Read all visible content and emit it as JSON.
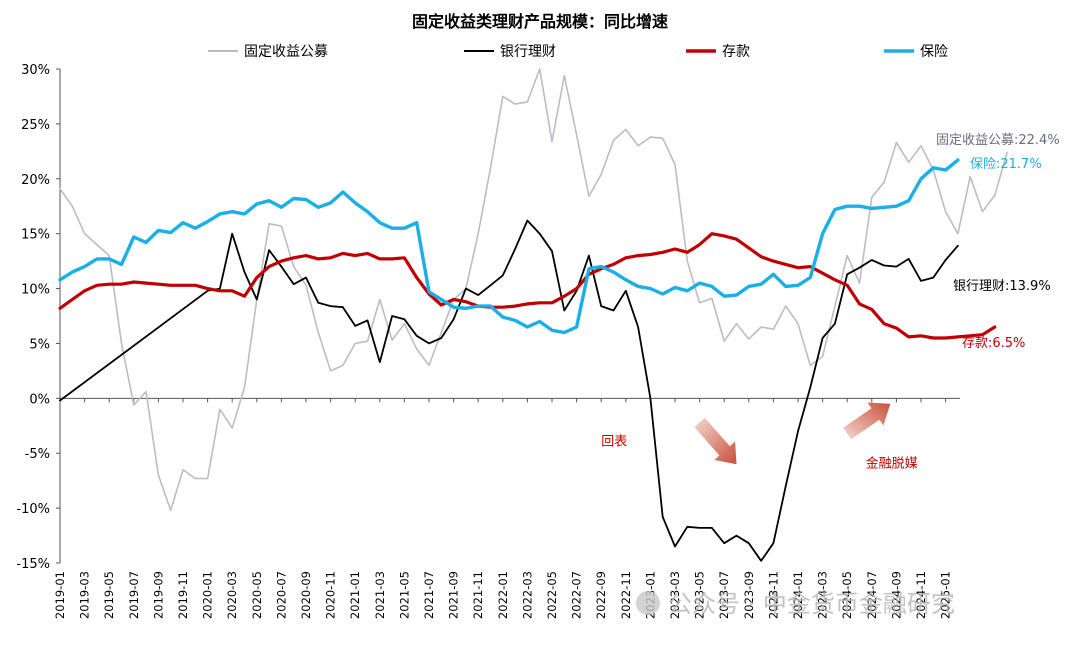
{
  "chart_data": {
    "type": "line",
    "title": "固定收益类理财产品规模：同比增速",
    "xlabel": "",
    "ylabel": "",
    "ylim": [
      -15,
      30
    ],
    "yticks": [
      30,
      25,
      20,
      15,
      10,
      5,
      0,
      -5,
      -10,
      -15
    ],
    "ytick_labels": [
      "30%",
      "25%",
      "20%",
      "15%",
      "10%",
      "5%",
      "0%",
      "-5%",
      "-10%",
      "-15%"
    ],
    "xlim": [
      "2019-01",
      "2025-02"
    ],
    "x_tick_labels": [
      "2019-01",
      "2019-03",
      "2019-05",
      "2019-07",
      "2019-09",
      "2019-11",
      "2020-01",
      "2020-03",
      "2020-05",
      "2020-07",
      "2020-09",
      "2020-11",
      "2021-01",
      "2021-03",
      "2021-05",
      "2021-07",
      "2021-09",
      "2021-11",
      "2022-01",
      "2022-03",
      "2022-05",
      "2022-07",
      "2022-09",
      "2022-11",
      "2023-01",
      "2023-03",
      "2023-05",
      "2023-07",
      "2023-09",
      "2023-11",
      "2024-01",
      "2024-03",
      "2024-05",
      "2024-07",
      "2024-09",
      "2024-11",
      "2025-01"
    ],
    "grid": false,
    "legend_position": "top",
    "series": [
      {
        "name": "固定收益公募",
        "color": "#bcbcc9",
        "end_label": "固定收益公募:22.4%",
        "end_label_color": "#6a6a80",
        "points": [
          [
            0,
            19.1
          ],
          [
            1,
            17.5
          ],
          [
            2,
            15
          ],
          [
            3,
            14
          ],
          [
            4,
            13
          ],
          [
            5,
            5
          ],
          [
            6,
            -0.6
          ],
          [
            7,
            0.6
          ],
          [
            8,
            -7
          ],
          [
            9,
            -10.2
          ],
          [
            10,
            -6.5
          ],
          [
            11,
            -7.3
          ],
          [
            12,
            -7.3
          ],
          [
            13,
            -1
          ],
          [
            14,
            -2.7
          ],
          [
            15,
            1
          ],
          [
            16,
            9
          ],
          [
            17,
            15.9
          ],
          [
            18,
            15.7
          ],
          [
            19,
            12
          ],
          [
            20,
            10.3
          ],
          [
            21,
            6
          ],
          [
            22,
            2.5
          ],
          [
            23,
            3
          ],
          [
            24,
            5
          ],
          [
            25,
            5.2
          ],
          [
            26,
            9
          ],
          [
            27,
            5.3
          ],
          [
            28,
            6.8
          ],
          [
            29,
            4.5
          ],
          [
            30,
            3
          ],
          [
            31,
            6
          ],
          [
            32,
            9
          ],
          [
            33,
            10
          ],
          [
            34,
            15
          ],
          [
            35,
            21
          ],
          [
            36,
            27.5
          ],
          [
            37,
            26.8
          ],
          [
            38,
            27
          ],
          [
            39,
            30
          ],
          [
            40,
            23.4
          ],
          [
            41,
            29.4
          ],
          [
            42,
            24
          ],
          [
            43,
            18.4
          ],
          [
            44,
            20.4
          ],
          [
            45,
            23.5
          ],
          [
            46,
            24.5
          ],
          [
            47,
            23
          ],
          [
            48,
            23.8
          ],
          [
            49,
            23.7
          ],
          [
            50,
            21.3
          ],
          [
            51,
            12.5
          ],
          [
            52,
            8.7
          ],
          [
            53,
            9.1
          ],
          [
            54,
            5.2
          ],
          [
            55,
            6.8
          ],
          [
            56,
            5.4
          ],
          [
            57,
            6.5
          ],
          [
            58,
            6.3
          ],
          [
            59,
            8.4
          ],
          [
            60,
            6.8
          ],
          [
            61,
            3
          ],
          [
            62,
            3.8
          ],
          [
            63,
            8.4
          ],
          [
            64,
            13
          ],
          [
            65,
            10.5
          ],
          [
            66,
            18.3
          ],
          [
            67,
            19.7
          ],
          [
            68,
            23.3
          ],
          [
            69,
            21.5
          ],
          [
            70,
            23
          ],
          [
            71,
            20.8
          ],
          [
            72,
            17
          ],
          [
            73,
            15
          ],
          [
            74,
            20.2
          ],
          [
            75,
            17
          ],
          [
            76,
            18.5
          ],
          [
            77,
            22.4
          ]
        ]
      },
      {
        "name": "银行理财",
        "color": "#000000",
        "end_label": "银行理财:13.9%",
        "end_label_color": "#000000",
        "points": [
          [
            0,
            -0.2
          ],
          [
            12,
            9.8
          ],
          [
            13,
            10
          ],
          [
            14,
            15
          ],
          [
            15,
            11.5
          ],
          [
            16,
            9
          ],
          [
            17,
            13.5
          ],
          [
            18,
            12
          ],
          [
            19,
            10.4
          ],
          [
            20,
            11
          ],
          [
            21,
            8.7
          ],
          [
            22,
            8.4
          ],
          [
            23,
            8.3
          ],
          [
            24,
            6.6
          ],
          [
            25,
            7.1
          ],
          [
            26,
            3.3
          ],
          [
            27,
            7.5
          ],
          [
            28,
            7.2
          ],
          [
            29,
            5.7
          ],
          [
            30,
            5
          ],
          [
            31,
            5.5
          ],
          [
            32,
            7.2
          ],
          [
            33,
            10
          ],
          [
            34,
            9.4
          ],
          [
            35,
            10.3
          ],
          [
            36,
            11.2
          ],
          [
            37,
            13.6
          ],
          [
            38,
            16.2
          ],
          [
            39,
            15
          ],
          [
            40,
            13.4
          ],
          [
            41,
            8
          ],
          [
            42,
            9.8
          ],
          [
            43,
            13
          ],
          [
            44,
            8.4
          ],
          [
            45,
            8
          ],
          [
            46,
            9.8
          ],
          [
            47,
            6.5
          ],
          [
            48,
            0
          ],
          [
            49,
            -10.8
          ],
          [
            50,
            -13.5
          ],
          [
            51,
            -11.7
          ],
          [
            52,
            -11.8
          ],
          [
            53,
            -11.8
          ],
          [
            54,
            -13.2
          ],
          [
            55,
            -12.5
          ],
          [
            56,
            -13.2
          ],
          [
            57,
            -14.8
          ],
          [
            58,
            -13.2
          ],
          [
            59,
            -8
          ],
          [
            60,
            -3
          ],
          [
            61,
            1
          ],
          [
            62,
            5.5
          ],
          [
            63,
            6.8
          ],
          [
            64,
            11.3
          ],
          [
            65,
            11.9
          ],
          [
            66,
            12.6
          ],
          [
            67,
            12.1
          ],
          [
            68,
            12
          ],
          [
            69,
            12.7
          ],
          [
            70,
            10.7
          ],
          [
            71,
            11
          ],
          [
            72,
            12.6
          ],
          [
            73,
            13.9
          ]
        ]
      },
      {
        "name": "存款",
        "color": "#c00000",
        "end_label": "存款:6.5%",
        "end_label_color": "#c00000",
        "points": [
          [
            0,
            8.2
          ],
          [
            1,
            9
          ],
          [
            2,
            9.8
          ],
          [
            3,
            10.3
          ],
          [
            4,
            10.4
          ],
          [
            5,
            10.4
          ],
          [
            6,
            10.6
          ],
          [
            7,
            10.5
          ],
          [
            8,
            10.4
          ],
          [
            9,
            10.3
          ],
          [
            10,
            10.3
          ],
          [
            11,
            10.3
          ],
          [
            12,
            10
          ],
          [
            13,
            9.8
          ],
          [
            14,
            9.8
          ],
          [
            15,
            9.3
          ],
          [
            16,
            11
          ],
          [
            17,
            12
          ],
          [
            18,
            12.5
          ],
          [
            19,
            12.8
          ],
          [
            20,
            13
          ],
          [
            21,
            12.7
          ],
          [
            22,
            12.8
          ],
          [
            23,
            13.2
          ],
          [
            24,
            13
          ],
          [
            25,
            13.2
          ],
          [
            26,
            12.7
          ],
          [
            27,
            12.7
          ],
          [
            28,
            12.8
          ],
          [
            29,
            11
          ],
          [
            30,
            9.5
          ],
          [
            31,
            8.5
          ],
          [
            32,
            9
          ],
          [
            33,
            8.8
          ],
          [
            34,
            8.4
          ],
          [
            35,
            8.3
          ],
          [
            36,
            8.3
          ],
          [
            37,
            8.4
          ],
          [
            38,
            8.6
          ],
          [
            39,
            8.7
          ],
          [
            40,
            8.7
          ],
          [
            41,
            9.3
          ],
          [
            42,
            10
          ],
          [
            43,
            11.3
          ],
          [
            44,
            11.8
          ],
          [
            45,
            12.2
          ],
          [
            46,
            12.8
          ],
          [
            47,
            13
          ],
          [
            48,
            13.1
          ],
          [
            49,
            13.3
          ],
          [
            50,
            13.6
          ],
          [
            51,
            13.3
          ],
          [
            52,
            14
          ],
          [
            53,
            15
          ],
          [
            54,
            14.8
          ],
          [
            55,
            14.5
          ],
          [
            56,
            13.7
          ],
          [
            57,
            12.9
          ],
          [
            58,
            12.5
          ],
          [
            59,
            12.2
          ],
          [
            60,
            11.9
          ],
          [
            61,
            12
          ],
          [
            62,
            11.4
          ],
          [
            63,
            10.8
          ],
          [
            64,
            10.3
          ],
          [
            65,
            8.6
          ],
          [
            66,
            8.1
          ],
          [
            67,
            6.8
          ],
          [
            68,
            6.4
          ],
          [
            69,
            5.6
          ],
          [
            70,
            5.7
          ],
          [
            71,
            5.5
          ],
          [
            72,
            5.5
          ],
          [
            73,
            5.6
          ],
          [
            74,
            5.7
          ],
          [
            75,
            5.8
          ],
          [
            76,
            6.5
          ]
        ]
      },
      {
        "name": "保险",
        "color": "#1aafe6",
        "end_label": "保险:21.7%",
        "end_label_color": "#1aafe6",
        "points": [
          [
            0,
            10.8
          ],
          [
            1,
            11.5
          ],
          [
            2,
            12
          ],
          [
            3,
            12.7
          ],
          [
            4,
            12.7
          ],
          [
            5,
            12.2
          ],
          [
            6,
            14.7
          ],
          [
            7,
            14.2
          ],
          [
            8,
            15.3
          ],
          [
            9,
            15.1
          ],
          [
            10,
            16
          ],
          [
            11,
            15.5
          ],
          [
            12,
            16.1
          ],
          [
            13,
            16.8
          ],
          [
            14,
            17
          ],
          [
            15,
            16.8
          ],
          [
            16,
            17.7
          ],
          [
            17,
            18
          ],
          [
            18,
            17.4
          ],
          [
            19,
            18.2
          ],
          [
            20,
            18.1
          ],
          [
            21,
            17.4
          ],
          [
            22,
            17.8
          ],
          [
            23,
            18.8
          ],
          [
            24,
            17.8
          ],
          [
            25,
            17
          ],
          [
            26,
            16
          ],
          [
            27,
            15.5
          ],
          [
            28,
            15.5
          ],
          [
            29,
            16
          ],
          [
            30,
            9.7
          ],
          [
            31,
            9
          ],
          [
            32,
            8.3
          ],
          [
            33,
            8.2
          ],
          [
            34,
            8.4
          ],
          [
            35,
            8.4
          ],
          [
            36,
            7.4
          ],
          [
            37,
            7.1
          ],
          [
            38,
            6.5
          ],
          [
            39,
            7
          ],
          [
            40,
            6.2
          ],
          [
            41,
            6
          ],
          [
            42,
            6.5
          ],
          [
            43,
            11.8
          ],
          [
            44,
            12
          ],
          [
            45,
            11.5
          ],
          [
            46,
            10.8
          ],
          [
            47,
            10.2
          ],
          [
            48,
            10
          ],
          [
            49,
            9.5
          ],
          [
            50,
            10.1
          ],
          [
            51,
            9.8
          ],
          [
            52,
            10.5
          ],
          [
            53,
            10.2
          ],
          [
            54,
            9.3
          ],
          [
            55,
            9.4
          ],
          [
            56,
            10.2
          ],
          [
            57,
            10.4
          ],
          [
            58,
            11.3
          ],
          [
            59,
            10.2
          ],
          [
            60,
            10.3
          ],
          [
            61,
            11
          ],
          [
            62,
            15
          ],
          [
            63,
            17.2
          ],
          [
            64,
            17.5
          ],
          [
            65,
            17.5
          ],
          [
            66,
            17.3
          ],
          [
            67,
            17.4
          ],
          [
            68,
            17.5
          ],
          [
            69,
            18
          ],
          [
            70,
            20
          ],
          [
            71,
            21
          ],
          [
            72,
            20.8
          ],
          [
            73,
            21.7
          ]
        ]
      }
    ],
    "annotations": [
      {
        "text": "回表",
        "color": "#c00000",
        "x": 44,
        "y": -4.3
      },
      {
        "text": "金融脱媒",
        "color": "#c00000",
        "x": 65.5,
        "y": -6.3
      }
    ],
    "arrows": [
      {
        "direction": "down",
        "color": "#d06a5a",
        "x_from": 52,
        "y_from": -2.2,
        "x_to": 55,
        "y_to": -6
      },
      {
        "direction": "up",
        "color": "#d06a5a",
        "x_from": 64,
        "y_from": -3.2,
        "x_to": 67.5,
        "y_to": -0.5
      }
    ]
  },
  "watermark": {
    "icon": "wechat-icon",
    "text": "公众号 · 中金货币金融研究"
  }
}
